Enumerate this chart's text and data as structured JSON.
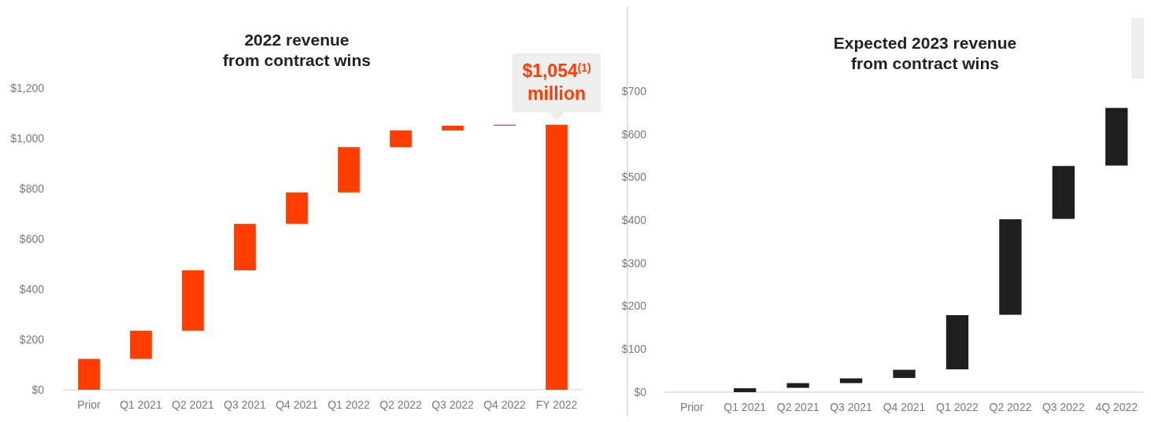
{
  "chart_data": [
    {
      "type": "bar",
      "title": "2022 revenue\nfrom contract wins",
      "categories": [
        "Prior",
        "Q1 2021",
        "Q2 2021",
        "Q3 2021",
        "Q4 2021",
        "Q1 2022",
        "Q2 2022",
        "Q3 2022",
        "Q4 2022",
        "FY 2022"
      ],
      "series": [
        {
          "color": "#ff3d00",
          "values": [
            123,
            112,
            240,
            185,
            125,
            180,
            66,
            19,
            4,
            1054
          ],
          "base": [
            0,
            123,
            235,
            475,
            660,
            785,
            965,
            1031,
            1050,
            0
          ]
        }
      ],
      "ylim": [
        0,
        1200
      ],
      "yticks": [
        {
          "value": 0,
          "label": "$0"
        },
        {
          "value": 200,
          "label": "$200"
        },
        {
          "value": 400,
          "label": "$400"
        },
        {
          "value": 600,
          "label": "$600"
        },
        {
          "value": 800,
          "label": "$800"
        },
        {
          "value": 1000,
          "label": "$1,000"
        },
        {
          "value": 1200,
          "label": "$1,200"
        }
      ],
      "annotations": [
        {
          "text": "$1,054$^{(1)}$\nmillion",
          "x": "FY 2022",
          "y": 1054
        }
      ]
    },
    {
      "type": "bar",
      "title": "Expected 2023 revenue\nfrom contract wins",
      "categories": [
        "Prior",
        "Q1 2021",
        "Q2 2021",
        "Q3 2021",
        "Q4 2021",
        "Q1 2022",
        "Q2 2022",
        "Q3 2022",
        "4Q 2022"
      ],
      "series": [
        {
          "color": "#1e1e1e",
          "values": [
            null,
            9,
            11,
            11,
            19,
            126,
            222,
            123,
            134
          ],
          "base": [
            null,
            0,
            10,
            21,
            33,
            53,
            180,
            403,
            527
          ]
        }
      ],
      "ylim": [
        0,
        700
      ],
      "yticks": [
        {
          "value": 0,
          "label": "$0"
        },
        {
          "value": 100,
          "label": "$100"
        },
        {
          "value": 200,
          "label": "$200"
        },
        {
          "value": 300,
          "label": "$300"
        },
        {
          "value": 400,
          "label": "$400"
        },
        {
          "value": 500,
          "label": "$500"
        },
        {
          "value": 600,
          "label": "$600"
        },
        {
          "value": 700,
          "label": "$700"
        }
      ]
    }
  ]
}
